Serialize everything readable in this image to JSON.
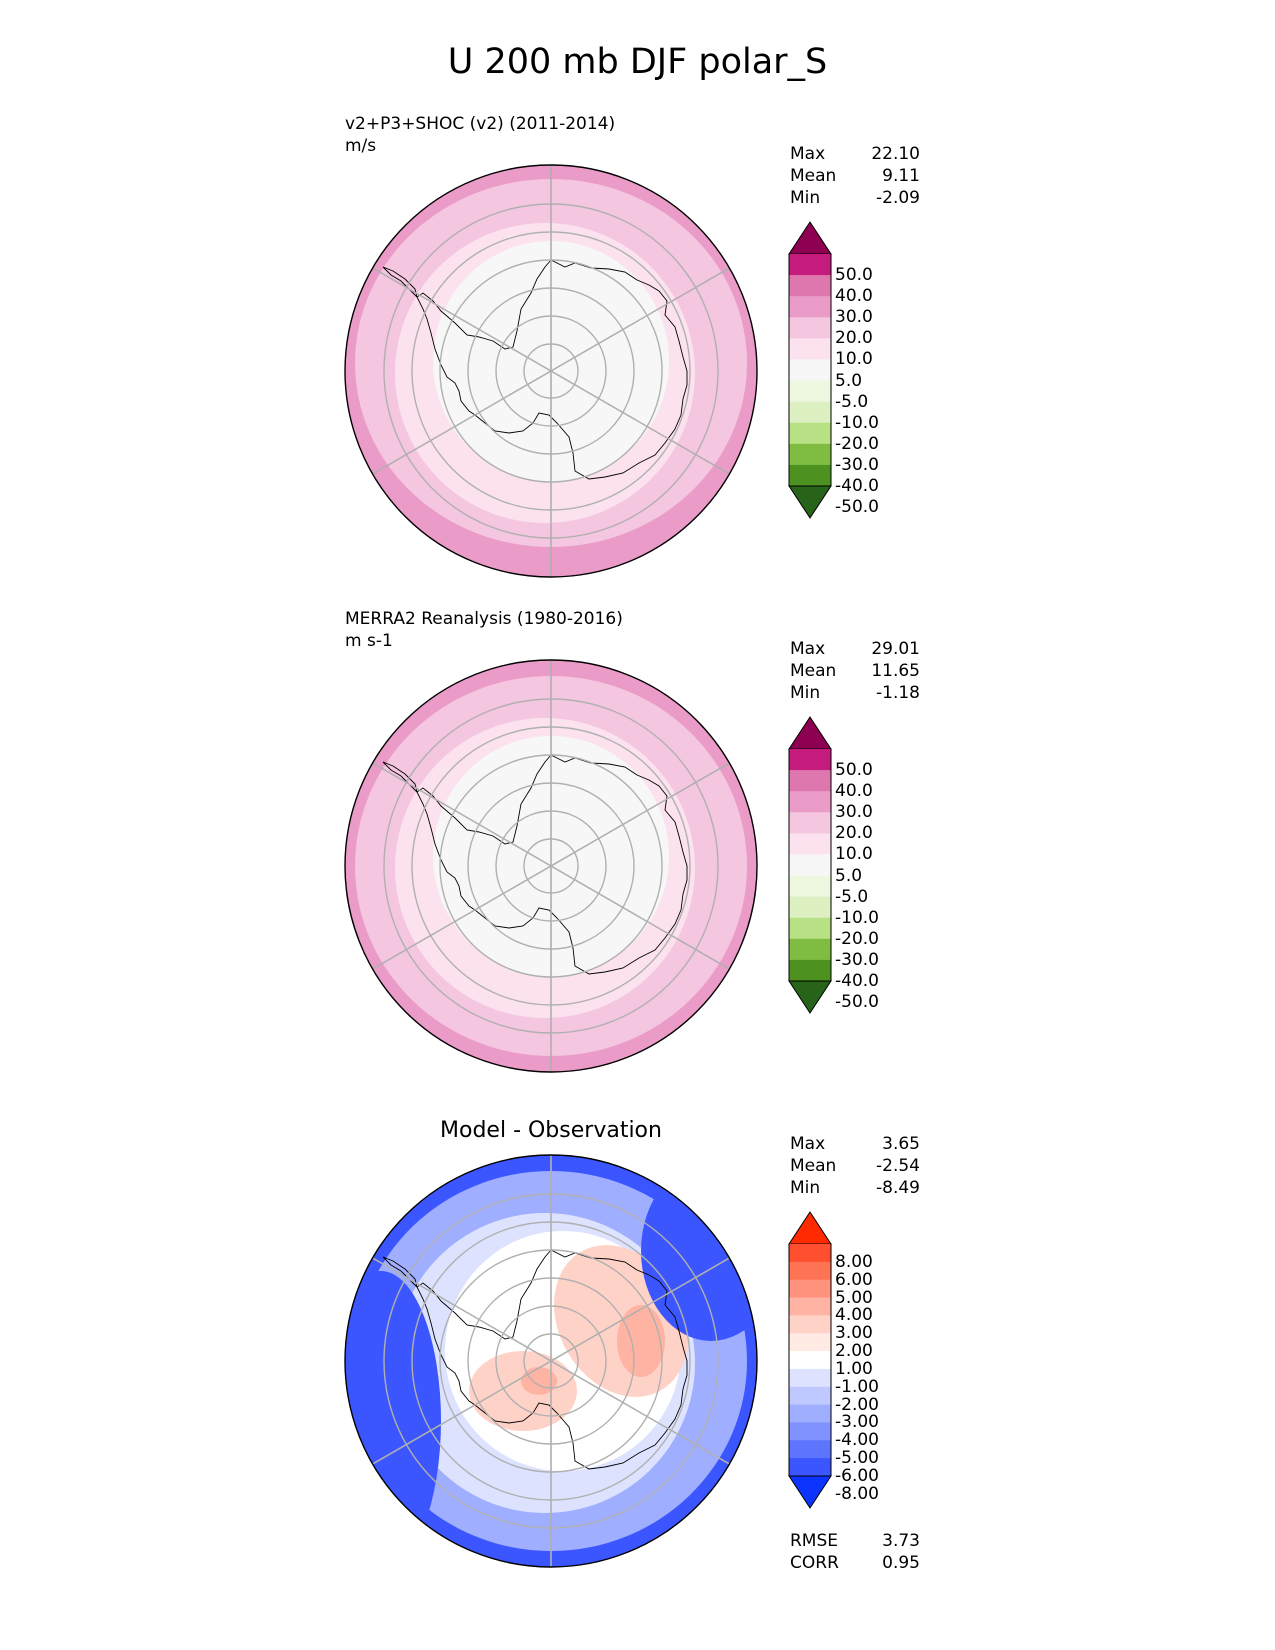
{
  "title": "U 200 mb DJF polar_S",
  "panels": [
    {
      "id": "model",
      "title_line1": "v2+P3+SHOC (v2) (2011-2014)",
      "title_line2": "m/s",
      "stats": [
        {
          "label": "Max",
          "value": "22.10"
        },
        {
          "label": "Mean",
          "value": "9.11"
        },
        {
          "label": "Min",
          "value": "-2.09"
        }
      ],
      "colorbar": {
        "tick_labels": [
          "50.0",
          "40.0",
          "30.0",
          "20.0",
          "10.0",
          "5.0",
          "-5.0",
          "-10.0",
          "-20.0",
          "-30.0",
          "-40.0",
          "-50.0"
        ],
        "colors": [
          "#8e0152",
          "#c51b7d",
          "#de77ae",
          "#ea9bc8",
          "#f4c6e0",
          "#fbe2ee",
          "#f7f7f7",
          "#eef7e0",
          "#dcf0c2",
          "#b8e186",
          "#7fbc41",
          "#4d9221",
          "#276419"
        ]
      },
      "zones": [
        "#f7f7f7",
        "#fbe2ee",
        "#f4c6e0",
        "#ea9bc8"
      ]
    },
    {
      "id": "obs",
      "title_line1": "MERRA2 Reanalysis (1980-2016)",
      "title_line2": "m s-1",
      "stats": [
        {
          "label": "Max",
          "value": "29.01"
        },
        {
          "label": "Mean",
          "value": "11.65"
        },
        {
          "label": "Min",
          "value": "-1.18"
        }
      ],
      "colorbar": {
        "tick_labels": [
          "50.0",
          "40.0",
          "30.0",
          "20.0",
          "10.0",
          "5.0",
          "-5.0",
          "-10.0",
          "-20.0",
          "-30.0",
          "-40.0",
          "-50.0"
        ],
        "colors": [
          "#8e0152",
          "#c51b7d",
          "#de77ae",
          "#ea9bc8",
          "#f4c6e0",
          "#fbe2ee",
          "#f7f7f7",
          "#eef7e0",
          "#dcf0c2",
          "#b8e186",
          "#7fbc41",
          "#4d9221",
          "#276419"
        ]
      },
      "zones": [
        "#f7f7f7",
        "#fbe2ee",
        "#f4c6e0",
        "#ea9bc8"
      ]
    },
    {
      "id": "diff",
      "center_title": "Model - Observation",
      "stats": [
        {
          "label": "Max",
          "value": "3.65"
        },
        {
          "label": "Mean",
          "value": "-2.54"
        },
        {
          "label": "Min",
          "value": "-8.49"
        }
      ],
      "colorbar": {
        "tick_labels": [
          "8.00",
          "6.00",
          "5.00",
          "4.00",
          "3.00",
          "2.00",
          "1.00",
          "-1.00",
          "-2.00",
          "-3.00",
          "-4.00",
          "-5.00",
          "-6.00",
          "-8.00"
        ],
        "colors": [
          "#ff2a00",
          "#ff4f2e",
          "#ff7355",
          "#ff927c",
          "#ffb4a3",
          "#ffd2c8",
          "#ffeae4",
          "#ffffff",
          "#dde3ff",
          "#bfc9ff",
          "#9faeff",
          "#7f92ff",
          "#5d74ff",
          "#3c56ff",
          "#0d33ff"
        ]
      },
      "zones": [
        "#ffffff",
        "#dde3ff",
        "#9faeff",
        "#3c56ff"
      ],
      "metrics": [
        {
          "label": "RMSE",
          "value": "3.73"
        },
        {
          "label": "CORR",
          "value": "0.95"
        }
      ]
    }
  ],
  "coastline_color": "#000000",
  "grid_color": "#b0b0b0"
}
